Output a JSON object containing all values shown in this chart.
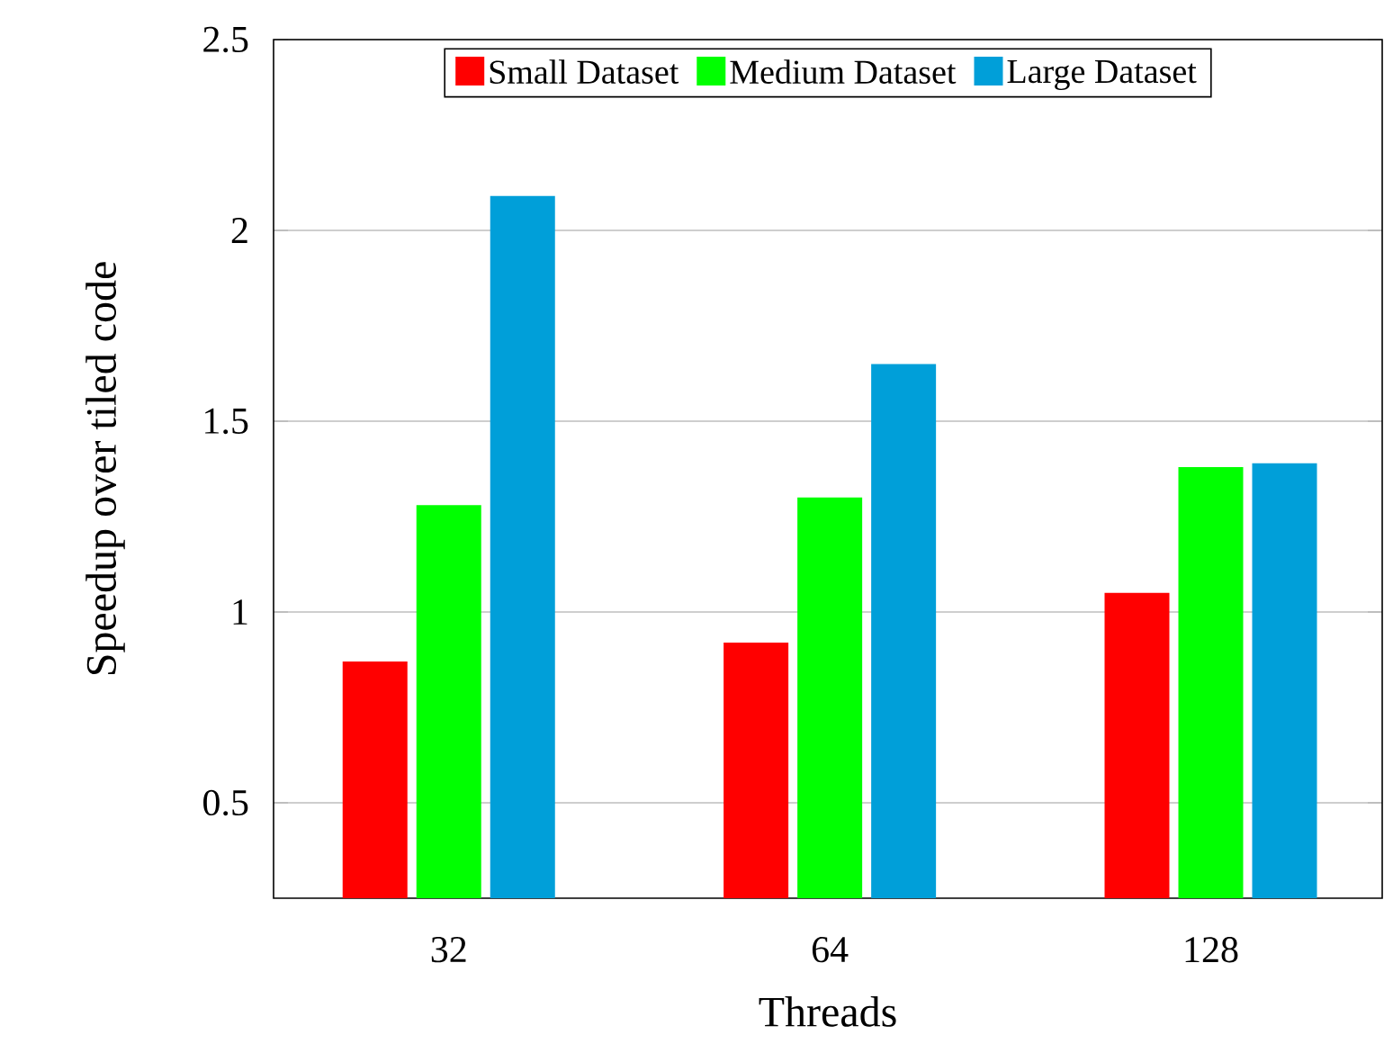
{
  "chart_data": {
    "type": "bar",
    "xlabel": "Threads",
    "ylabel": "Speedup over tiled code",
    "categories": [
      "32",
      "64",
      "128"
    ],
    "series": [
      {
        "name": "Small Dataset",
        "color": "#ff0000",
        "values": [
          0.87,
          0.92,
          1.05
        ]
      },
      {
        "name": "Medium Dataset",
        "color": "#00ff00",
        "values": [
          1.28,
          1.3,
          1.38
        ]
      },
      {
        "name": "Large Dataset",
        "color": "#009fd9",
        "values": [
          2.09,
          1.65,
          1.39
        ]
      }
    ],
    "ylim": [
      0.25,
      2.5
    ],
    "yticks": [
      0.5,
      1,
      1.5,
      2,
      2.5
    ],
    "grid": "y",
    "legend": "top"
  }
}
